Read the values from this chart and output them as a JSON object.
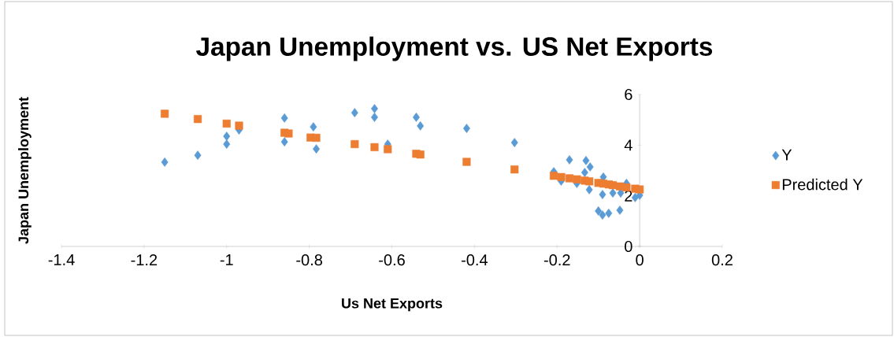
{
  "chart_data": {
    "type": "scatter",
    "title": "Japan Unemployment vs. US Net Exports",
    "xlabel": "Us Net Exports",
    "ylabel": "Japan Unemployment",
    "xlim": [
      -1.4,
      0.2
    ],
    "xticks": [
      -1.4,
      -1.2,
      -1,
      -0.8,
      -0.6,
      -0.4,
      -0.2,
      0,
      0.2
    ],
    "ylim": [
      0,
      6
    ],
    "yticks": [
      0,
      2,
      4,
      6
    ],
    "grid": false,
    "legend": "right",
    "series": [
      {
        "name": "Y",
        "color": "#5b9bd5",
        "marker": "diamond",
        "x": [
          -1.15,
          -1.07,
          -1.0,
          -1.0,
          -0.97,
          -0.86,
          -0.86,
          -0.85,
          -0.79,
          -0.783,
          -0.69,
          -0.642,
          -0.642,
          -0.61,
          -0.541,
          -0.531,
          -0.419,
          -0.303,
          -0.208,
          -0.19,
          -0.17,
          -0.152,
          -0.133,
          -0.13,
          -0.122,
          -0.12,
          -0.1,
          -0.09,
          -0.088,
          -0.09,
          -0.075,
          -0.065,
          -0.048,
          -0.046,
          -0.032,
          -0.011,
          0.0
        ],
        "values": [
          3.33,
          3.6,
          4.35,
          4.04,
          4.6,
          5.07,
          4.13,
          null,
          4.72,
          3.85,
          5.28,
          5.44,
          5.1,
          4.04,
          5.1,
          4.76,
          4.66,
          4.1,
          2.95,
          2.58,
          3.42,
          2.49,
          2.92,
          3.39,
          2.24,
          3.14,
          1.4,
          2.05,
          2.74,
          1.24,
          1.31,
          2.11,
          1.43,
          2.11,
          2.49,
          1.93,
          2.02
        ]
      },
      {
        "name": "Predicted Y",
        "color": "#ed7d31",
        "marker": "square",
        "x": [
          -1.15,
          -1.07,
          -1.0,
          -0.97,
          -0.86,
          -0.85,
          -0.797,
          -0.783,
          -0.69,
          -0.642,
          -0.61,
          -0.541,
          -0.531,
          -0.419,
          -0.303,
          -0.208,
          -0.19,
          -0.17,
          -0.152,
          -0.133,
          -0.122,
          -0.1,
          -0.088,
          -0.075,
          -0.065,
          -0.048,
          -0.032,
          -0.011,
          0.0
        ],
        "values": [
          5.24,
          5.03,
          4.85,
          4.77,
          4.49,
          4.46,
          4.3,
          4.29,
          4.04,
          3.92,
          3.84,
          3.66,
          3.63,
          3.34,
          3.04,
          2.79,
          2.74,
          2.69,
          2.65,
          2.6,
          2.57,
          2.51,
          2.48,
          2.45,
          2.42,
          2.37,
          2.33,
          2.28,
          2.25
        ]
      }
    ]
  }
}
